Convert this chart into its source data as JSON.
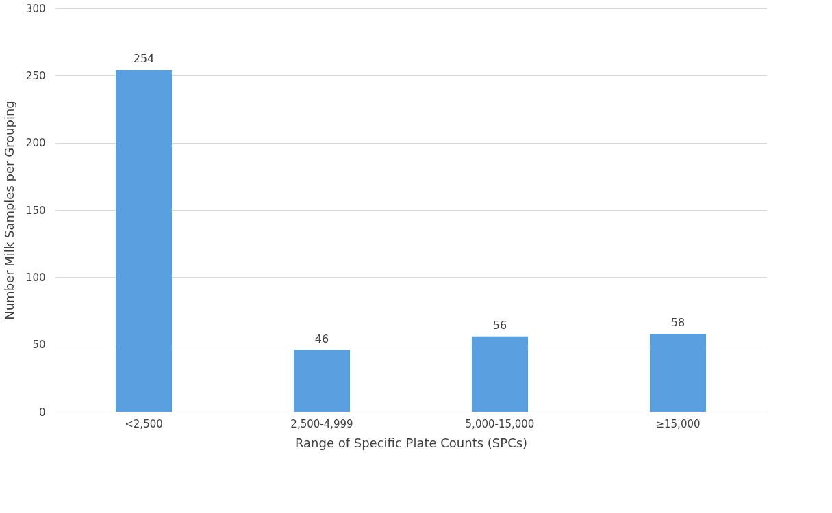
{
  "chart_data": {
    "type": "bar",
    "xlabel": "Range of Specific Plate Counts (SPCs)",
    "ylabel": "Number Milk Samples per Grouping",
    "categories": [
      "<2,500",
      "2,500-4,999",
      "5,000-15,000",
      "≥15,000"
    ],
    "values": [
      254,
      46,
      56,
      58
    ],
    "color": "#5a9fe0",
    "ylim": [
      0,
      300
    ],
    "yticks": [
      0,
      50,
      100,
      150,
      200,
      250,
      300
    ],
    "grid": "y",
    "data_labels": true
  }
}
